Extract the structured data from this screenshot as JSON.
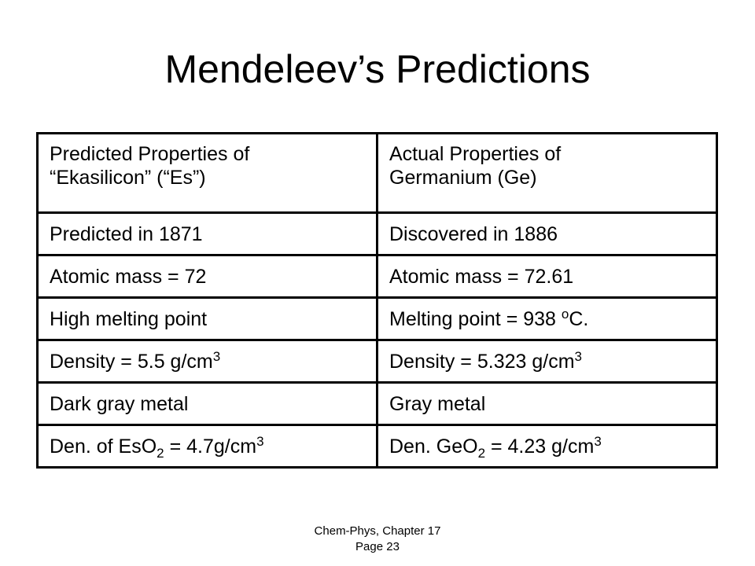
{
  "title": "Mendeleev’s Predictions",
  "table": {
    "header": [
      [
        "Predicted Properties of",
        "“Ekasilicon”  (“Es”)"
      ],
      [
        "Actual Properties of",
        "Germanium (Ge)"
      ]
    ],
    "rows": [
      [
        "Predicted in 1871",
        "Discovered in 1886"
      ],
      [
        "Atomic mass = 72",
        "Atomic mass = 72.61"
      ],
      [
        "High melting point",
        [
          {
            "text": "Melting point = 938 "
          },
          {
            "sup": "o"
          },
          {
            "text": "C."
          }
        ]
      ],
      [
        [
          {
            "text": "Density = 5.5 g/cm"
          },
          {
            "sup": "3"
          }
        ],
        [
          {
            "text": "Density = 5.323 g/cm"
          },
          {
            "sup": "3"
          }
        ]
      ],
      [
        "Dark gray metal",
        "Gray metal"
      ],
      [
        [
          {
            "text": "Den. of EsO"
          },
          {
            "sub": "2"
          },
          {
            "text": " = 4.7g/cm"
          },
          {
            "sup": "3"
          }
        ],
        [
          {
            "text": "Den. GeO"
          },
          {
            "sub": "2"
          },
          {
            "text": " = 4.23 g/cm"
          },
          {
            "sup": "3"
          }
        ]
      ]
    ]
  },
  "footer": [
    "Chem-Phys, Chapter 17",
    "Page 23"
  ]
}
